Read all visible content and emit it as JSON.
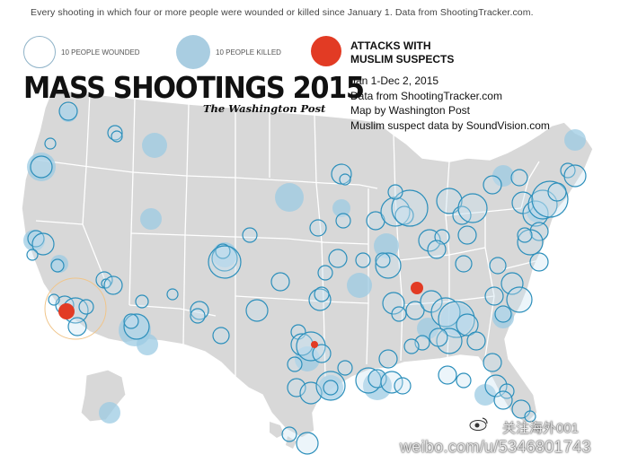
{
  "top_note": "Every shooting in which four or more people were wounded or killed since January 1. Data from ShootingTracker.com.",
  "legend": {
    "wounded_label": "10 PEOPLE WOUNDED",
    "killed_label": "10 PEOPLE KILLED",
    "muslim_label_line1": "ATTACKS WITH",
    "muslim_label_line2": "MUSLIM SUSPECTS"
  },
  "title": "MASS SHOOTINGS 2015",
  "publisher": "The Washington Post",
  "credits": {
    "date_range": "Jan 1-Dec 2, 2015",
    "data_source": "Data from ShootingTracker.com",
    "map_by": "Map by Washington Post",
    "muslim_source": "Muslim suspect data by SoundVision.com"
  },
  "watermark": {
    "handle": "关注海外001",
    "url": "weibo.com/u/5346801743"
  },
  "colors": {
    "land": "#d8d8d8",
    "state_border": "#ffffff",
    "wounded_ring": "#2c8fbb",
    "killed_fill": "#8fc3df",
    "muslim_attack": "#e23b24"
  },
  "muslim_attack_locations": [
    "San Bernardino, CA",
    "Chattanooga, TN",
    "Garland, TX"
  ]
}
